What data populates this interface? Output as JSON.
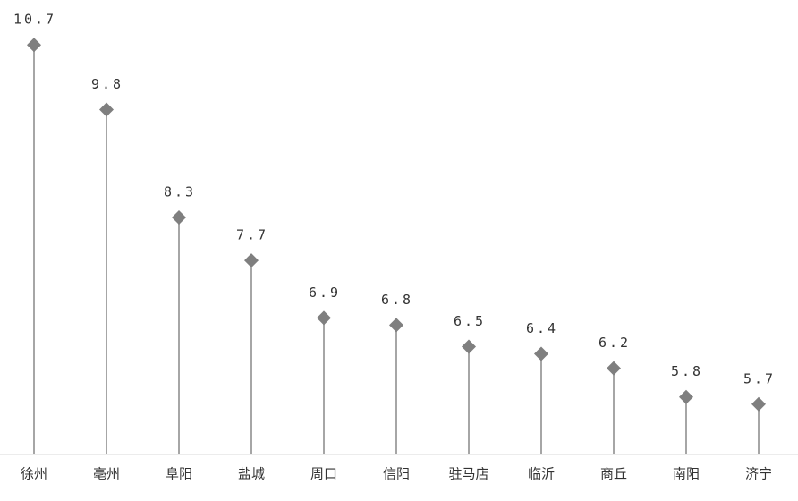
{
  "chart_data": {
    "type": "lollipop",
    "categories": [
      "徐州",
      "亳州",
      "阜阳",
      "盐城",
      "周口",
      "信阳",
      "驻马店",
      "临沂",
      "商丘",
      "南阳",
      "济宁"
    ],
    "values": [
      10.7,
      9.8,
      8.3,
      7.7,
      6.9,
      6.8,
      6.5,
      6.4,
      6.2,
      5.8,
      5.7
    ],
    "color": "#7f7f7f",
    "stem_color": "#a6a6a6",
    "ylim": [
      5,
      11.3
    ]
  }
}
